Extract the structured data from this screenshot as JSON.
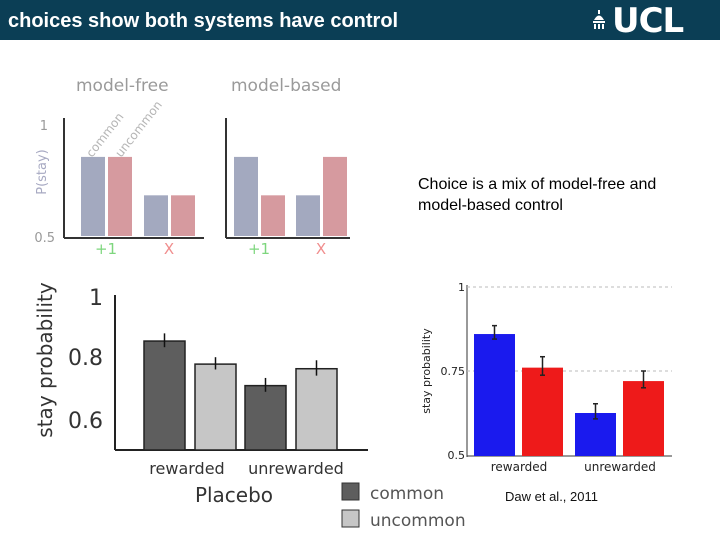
{
  "slide": {
    "title": "choices show both systems have control",
    "logo": "UCL",
    "note": "Choice is a mix of model-free and model-based control",
    "citation": "Daw et al., 2011"
  },
  "colors": {
    "header_bg": "#0b3e55",
    "schem_common": "#a3a9bf",
    "schem_uncommon": "#d69a9f",
    "plac_common": "#5e5e5e",
    "plac_uncommon": "#c6c6c6",
    "daw_common": "#1a1aee",
    "daw_uncommon": "#ee1a1a"
  },
  "chart_data": [
    {
      "id": "schematic",
      "type": "bar",
      "ylabel": "P(stay)",
      "ylim": [
        0.5,
        1
      ],
      "yticks": [
        "1",
        "0.5"
      ],
      "panels": [
        {
          "title": "model-free",
          "categories": [
            "+1",
            "X"
          ],
          "series": [
            {
              "name": "common",
              "values": [
                0.85,
                0.68
              ]
            },
            {
              "name": "uncommon",
              "values": [
                0.85,
                0.68
              ]
            }
          ]
        },
        {
          "title": "model-based",
          "categories": [
            "+1",
            "X"
          ],
          "series": [
            {
              "name": "common",
              "values": [
                0.85,
                0.68
              ]
            },
            {
              "name": "uncommon",
              "values": [
                0.68,
                0.85
              ]
            }
          ]
        }
      ],
      "bar_labels": [
        "common",
        "uncommon"
      ]
    },
    {
      "id": "placebo",
      "type": "bar",
      "title": "Placebo",
      "ylabel": "stay probability",
      "ylim": [
        0.5,
        1.0
      ],
      "yticks": [
        "1",
        "0.8",
        "0.6"
      ],
      "categories": [
        "rewarded",
        "unrewarded"
      ],
      "series": [
        {
          "name": "common",
          "values": [
            0.86,
            0.715
          ],
          "errors": [
            0.04,
            0.04
          ]
        },
        {
          "name": "uncommon",
          "values": [
            0.785,
            0.77
          ],
          "errors": [
            0.035,
            0.045
          ]
        }
      ],
      "legend": [
        "common",
        "uncommon"
      ]
    },
    {
      "id": "daw2011",
      "type": "bar",
      "ylabel": "stay probability",
      "ylim": [
        0.5,
        1
      ],
      "yticks": [
        "1",
        "0.75",
        "0.5"
      ],
      "categories": [
        "rewarded",
        "unrewarded"
      ],
      "series": [
        {
          "name": "common",
          "values": [
            0.86,
            0.625
          ],
          "errors": [
            0.03,
            0.035
          ]
        },
        {
          "name": "uncommon",
          "values": [
            0.76,
            0.72
          ],
          "errors": [
            0.045,
            0.04
          ]
        }
      ]
    }
  ]
}
